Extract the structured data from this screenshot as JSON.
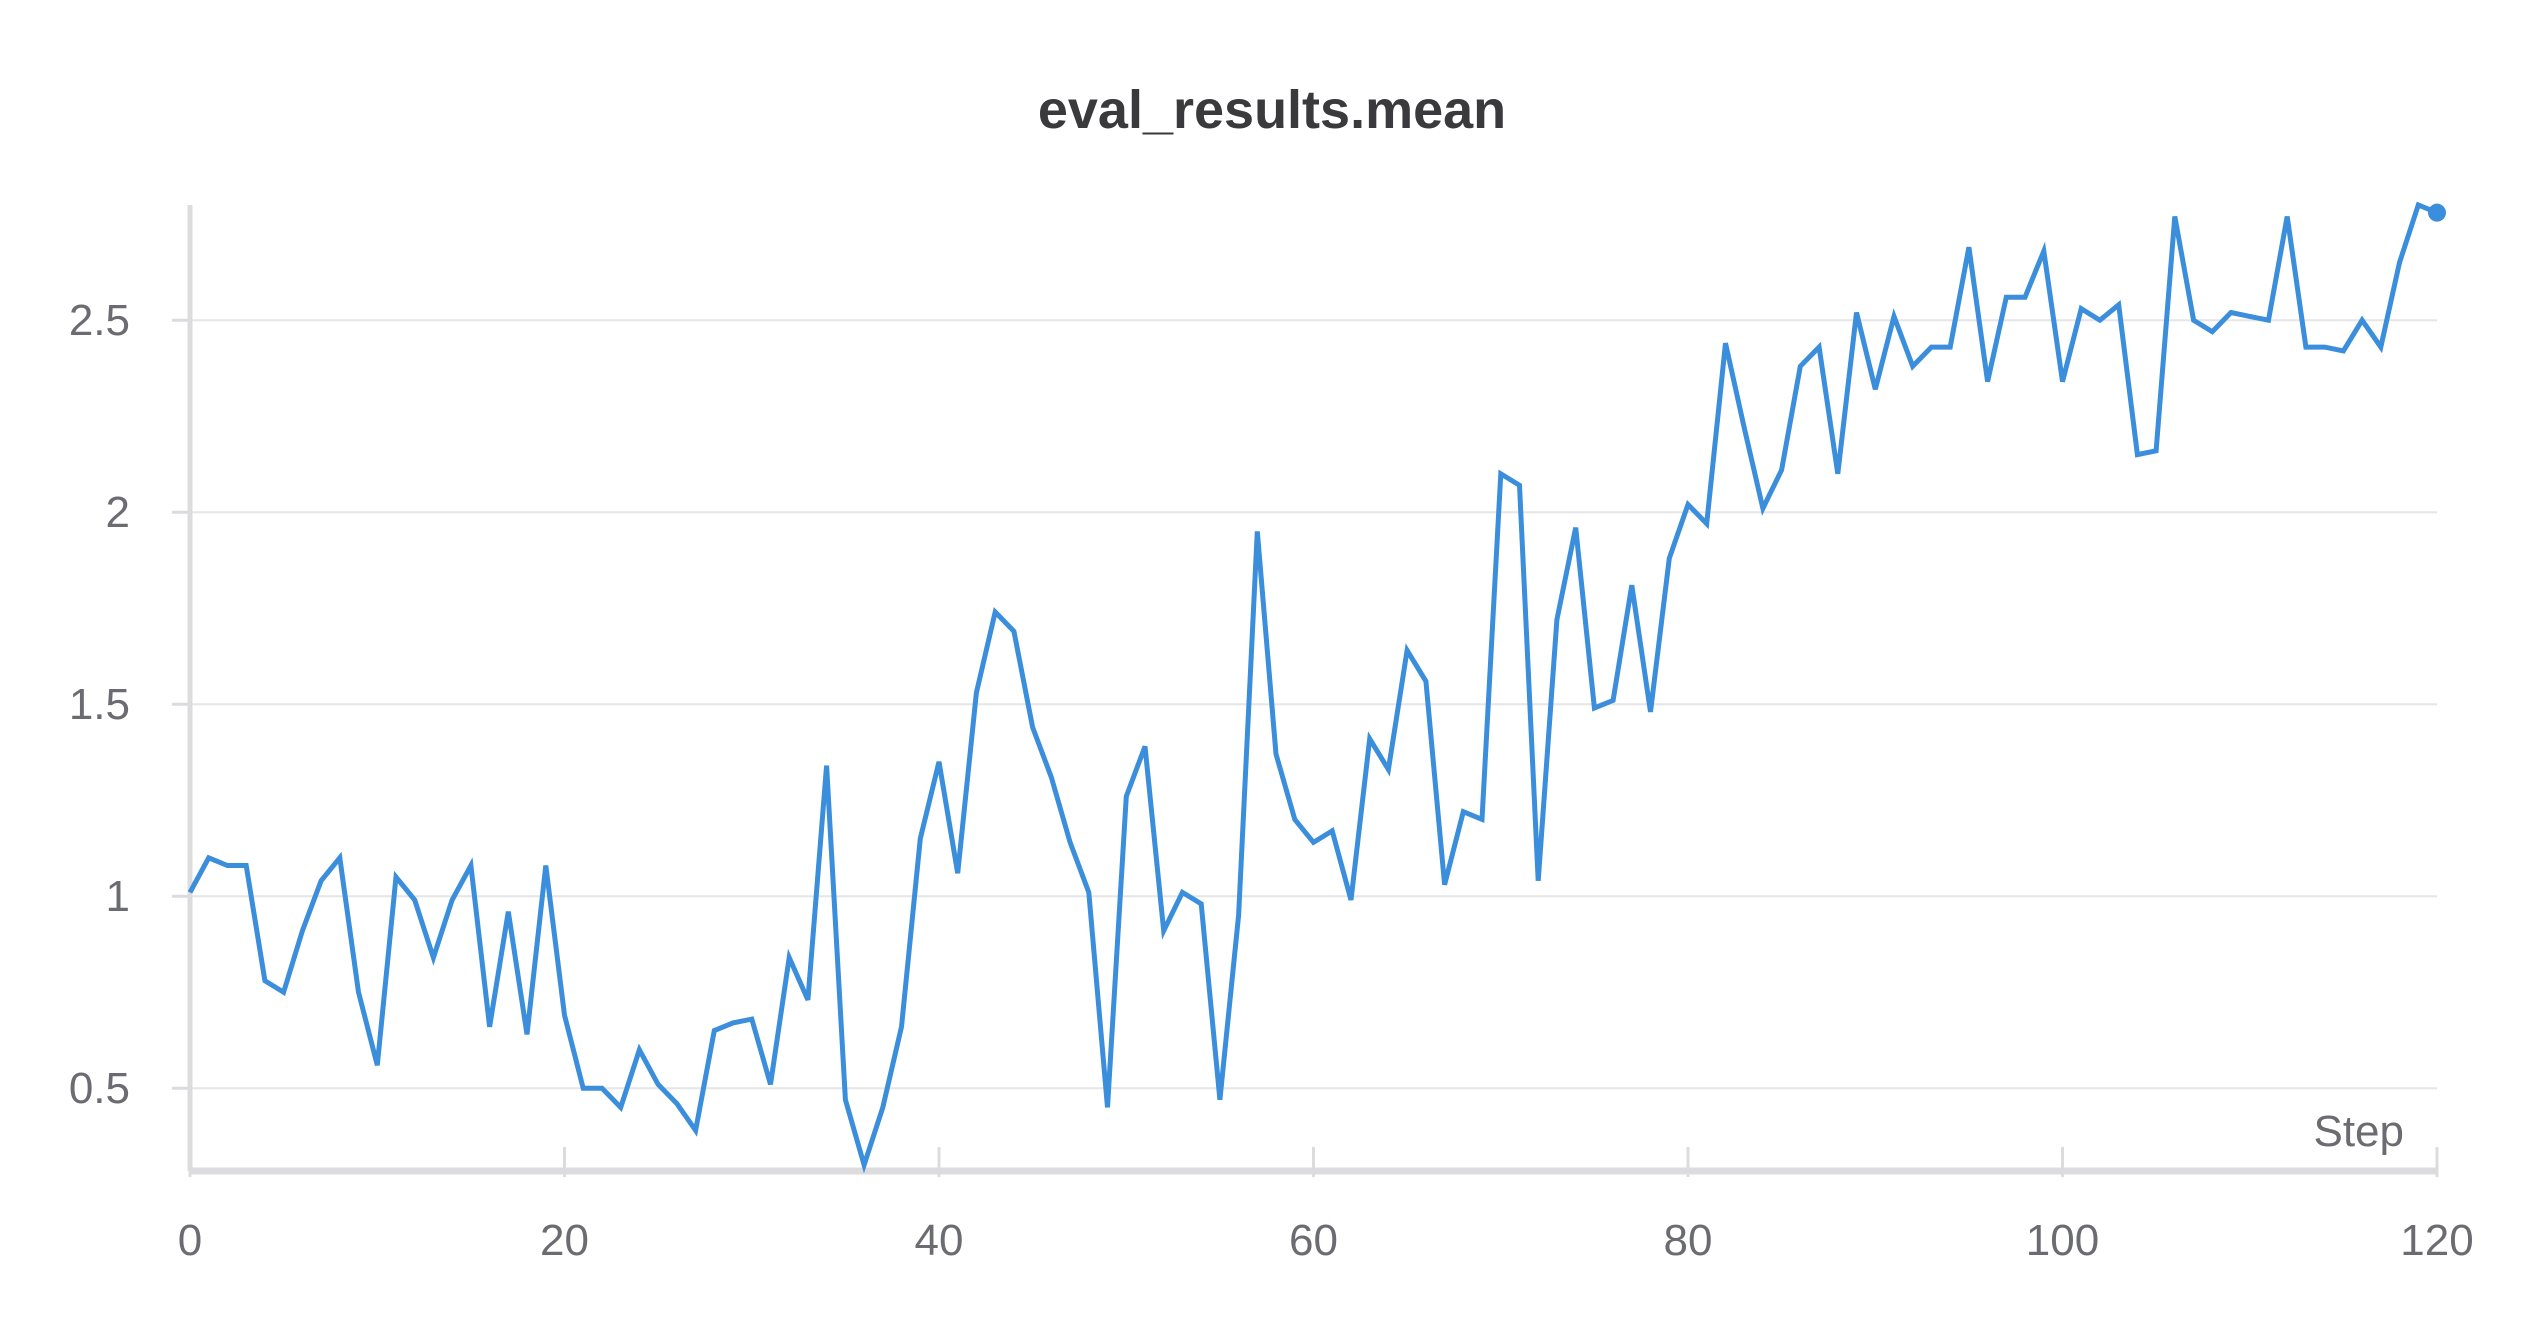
{
  "chart_data": {
    "type": "line",
    "title": "eval_results.mean",
    "xlabel": "Step",
    "ylabel": "",
    "xlim": [
      0,
      120
    ],
    "ylim": [
      0.3,
      2.8
    ],
    "x_ticks": [
      0,
      20,
      40,
      60,
      80,
      100,
      120
    ],
    "x_tick_labels": [
      "0",
      "20",
      "40",
      "60",
      "80",
      "100",
      "120"
    ],
    "y_ticks": [
      0.5,
      1,
      1.5,
      2,
      2.5
    ],
    "y_tick_labels": [
      "0.5",
      "1",
      "1.5",
      "2",
      "2.5"
    ],
    "grid": true,
    "colors": {
      "line": "#3a8edb",
      "grid": "#e6e6e8",
      "axis": "#dcdcdf",
      "tick_text": "#6b6b72",
      "title": "#3a3a3d"
    },
    "series": [
      {
        "x": [
          0,
          1,
          2,
          3,
          4,
          5,
          6,
          7,
          8,
          9,
          10,
          11,
          12,
          13,
          14,
          15,
          16,
          17,
          18,
          19,
          20,
          21,
          22,
          23,
          24,
          25,
          26,
          27,
          28,
          29,
          30,
          31,
          32,
          33,
          34,
          35,
          36,
          37,
          38,
          39,
          40,
          41,
          42,
          43,
          44,
          45,
          46,
          47,
          48,
          49,
          50,
          51,
          52,
          53,
          54,
          55,
          56,
          57,
          58,
          59,
          60,
          61,
          62,
          63,
          64,
          65,
          66,
          67,
          68,
          69,
          70,
          71,
          72,
          73,
          74,
          75,
          76,
          77,
          78,
          79,
          80,
          81,
          82,
          83,
          84,
          85,
          86,
          87,
          88,
          89,
          90,
          91,
          92,
          93,
          94,
          95,
          96,
          97,
          98,
          99,
          100,
          101,
          102,
          103,
          104,
          105,
          106,
          107,
          108,
          109,
          110,
          111,
          112,
          113,
          114,
          115,
          116,
          117,
          118,
          119,
          120
        ],
        "y": [
          1.01,
          1.1,
          1.08,
          1.08,
          0.78,
          0.75,
          0.91,
          1.04,
          1.1,
          0.75,
          0.56,
          1.05,
          0.99,
          0.84,
          0.99,
          1.08,
          0.66,
          0.96,
          0.64,
          1.08,
          0.69,
          0.5,
          0.5,
          0.45,
          0.6,
          0.51,
          0.46,
          0.39,
          0.65,
          0.67,
          0.68,
          0.51,
          0.84,
          0.73,
          1.34,
          0.47,
          0.3,
          0.45,
          0.66,
          1.15,
          1.35,
          1.06,
          1.53,
          1.74,
          1.69,
          1.44,
          1.31,
          1.14,
          1.01,
          0.45,
          1.26,
          1.39,
          0.91,
          1.01,
          0.98,
          0.47,
          0.95,
          1.95,
          1.37,
          1.2,
          1.14,
          1.17,
          0.99,
          1.41,
          1.33,
          1.64,
          1.56,
          1.03,
          1.22,
          1.2,
          2.1,
          2.07,
          1.04,
          1.72,
          1.96,
          1.49,
          1.51,
          1.81,
          1.48,
          1.88,
          2.02,
          1.97,
          2.44,
          2.22,
          2.01,
          2.11,
          2.38,
          2.43,
          2.1,
          2.52,
          2.32,
          2.51,
          2.38,
          2.43,
          2.43,
          2.69,
          2.34,
          2.56,
          2.56,
          2.68,
          2.34,
          2.53,
          2.5,
          2.54,
          2.15,
          2.16,
          2.77,
          2.5,
          2.47,
          2.52,
          2.51,
          2.5,
          2.77,
          2.43,
          2.43,
          2.42,
          2.5,
          2.43,
          2.65,
          2.8,
          2.78
        ]
      }
    ]
  }
}
